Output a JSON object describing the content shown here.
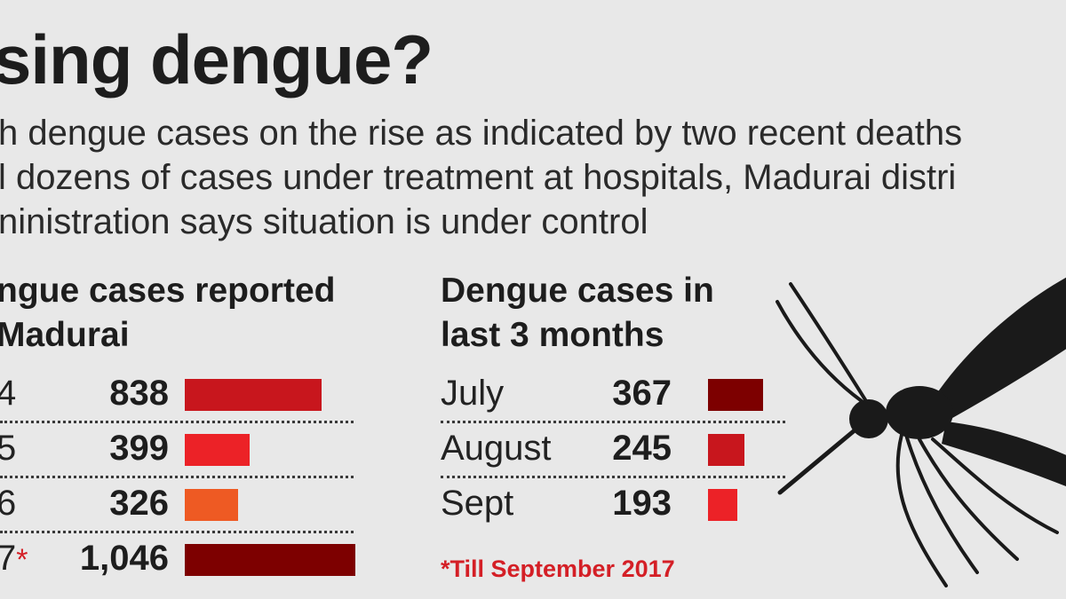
{
  "header": {
    "title": "sing dengue?",
    "subtitle_lines": [
      "h dengue cases on the rise as indicated by two recent deaths",
      "l dozens of cases under treatment at hospitals, Madurai distri",
      "ninistration says situation is under control"
    ]
  },
  "colors": {
    "dark_red": "#7d0000",
    "red": "#c8161d",
    "bright_red": "#ec2227",
    "orange": "#ee5a23",
    "accent": "#d41f26"
  },
  "chart_data": [
    {
      "type": "bar",
      "title_lines": [
        "ngue cases reported",
        "Madurai"
      ],
      "categories": [
        "4",
        "5",
        "6",
        "7"
      ],
      "values": [
        838,
        399,
        326,
        1046
      ],
      "value_labels": [
        "838",
        "399",
        "326",
        "1,046"
      ],
      "asterisk": "*",
      "bar_colors": [
        "#c8161d",
        "#ec2227",
        "#ee5a23",
        "#7d0000"
      ],
      "xlim": [
        0,
        1046
      ]
    },
    {
      "type": "bar",
      "title_lines": [
        "Dengue cases in",
        "last 3 months"
      ],
      "categories": [
        "July",
        "August",
        "Sept"
      ],
      "values": [
        367,
        245,
        193
      ],
      "value_labels": [
        "367",
        "245",
        "193"
      ],
      "bar_colors": [
        "#7d0000",
        "#c8161d",
        "#ec2227"
      ],
      "xlim": [
        0,
        367
      ]
    }
  ],
  "footnote": "*Till September 2017",
  "illustration": {
    "icon": "mosquito-icon"
  }
}
